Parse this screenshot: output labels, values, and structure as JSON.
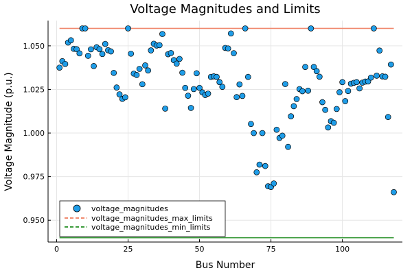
{
  "chart_data": {
    "type": "scatter",
    "title": "Voltage Magnitudes and Limits",
    "xlabel": "Bus Number",
    "ylabel": "Voltage Magnitude (p.u.)",
    "xlim": [
      -3,
      121
    ],
    "ylim": [
      0.9375,
      1.0645
    ],
    "x_ticks": [
      0,
      25,
      50,
      75,
      100
    ],
    "x_tick_labels": [
      "0",
      "25",
      "50",
      "75",
      "100"
    ],
    "y_ticks": [
      0.95,
      0.975,
      1.0,
      1.025,
      1.05
    ],
    "y_tick_labels": [
      "0.950",
      "0.975",
      "1.000",
      "1.025",
      "1.050"
    ],
    "grid": true,
    "legend_position": "bottom-left",
    "series": [
      {
        "name": "voltage_magnitudes",
        "kind": "scatter",
        "color": "#1f9de8",
        "edge_color": "#000000",
        "x": [
          1,
          2,
          3,
          4,
          5,
          6,
          7,
          8,
          9,
          10,
          11,
          12,
          13,
          14,
          15,
          16,
          17,
          18,
          19,
          20,
          21,
          22,
          23,
          24,
          25,
          26,
          27,
          28,
          29,
          30,
          31,
          32,
          33,
          34,
          35,
          36,
          37,
          38,
          39,
          40,
          41,
          42,
          43,
          44,
          45,
          46,
          47,
          48,
          49,
          50,
          51,
          52,
          53,
          54,
          55,
          56,
          57,
          58,
          59,
          60,
          61,
          62,
          63,
          64,
          65,
          66,
          67,
          68,
          69,
          70,
          71,
          72,
          73,
          74,
          75,
          76,
          77,
          78,
          79,
          80,
          81,
          82,
          83,
          84,
          85,
          86,
          87,
          88,
          89,
          90,
          91,
          92,
          93,
          94,
          95,
          96,
          97,
          98,
          99,
          100,
          101,
          102,
          103,
          104,
          105,
          106,
          107,
          108,
          109,
          110,
          111,
          112,
          113,
          114,
          115,
          116,
          117,
          118
        ],
        "y": [
          1.0375,
          1.0412,
          1.0396,
          1.0519,
          1.0532,
          1.0483,
          1.0481,
          1.0457,
          1.06,
          1.06,
          1.0443,
          1.048,
          1.0384,
          1.0492,
          1.0481,
          1.0453,
          1.0511,
          1.0475,
          1.0468,
          1.0345,
          1.0261,
          1.0222,
          1.0196,
          1.0205,
          1.06,
          1.0455,
          1.0341,
          1.0333,
          1.0368,
          1.028,
          1.0388,
          1.0359,
          1.0474,
          1.0512,
          1.0502,
          1.0504,
          1.0568,
          1.014,
          1.0452,
          1.0459,
          1.0418,
          1.0398,
          1.0425,
          1.0346,
          1.0259,
          1.0214,
          1.0144,
          1.0252,
          1.0343,
          1.0259,
          1.0233,
          1.0218,
          1.0226,
          1.0322,
          1.0325,
          1.0322,
          1.0292,
          1.0265,
          1.0488,
          1.0485,
          1.0571,
          1.0458,
          1.0206,
          1.0279,
          1.0213,
          1.06,
          1.0322,
          1.0052,
          1.0,
          0.9775,
          0.9819,
          1.0,
          0.9811,
          0.9695,
          0.9691,
          0.9711,
          1.0019,
          0.9972,
          0.9985,
          1.0281,
          0.9921,
          1.0096,
          1.0154,
          1.0195,
          1.0252,
          1.024,
          1.0379,
          1.0243,
          1.06,
          1.0379,
          1.0355,
          1.0323,
          1.0177,
          1.0133,
          1.0032,
          1.0068,
          1.0059,
          1.0138,
          1.0234,
          1.0292,
          1.0183,
          1.0241,
          1.0283,
          1.0288,
          1.0292,
          1.0256,
          1.0289,
          1.0295,
          1.0296,
          1.0318,
          1.06,
          1.0329,
          1.0473,
          1.0325,
          1.0323,
          1.0092,
          1.0393,
          0.9661
        ]
      },
      {
        "name": "voltage_magnitudes_max_limits",
        "kind": "line",
        "color": "#f0896e",
        "x": [
          1,
          118
        ],
        "y": [
          1.06,
          1.06
        ]
      },
      {
        "name": "voltage_magnitudes_min_limits",
        "kind": "line",
        "color": "#3a9a3a",
        "x": [
          1,
          118
        ],
        "y": [
          0.94,
          0.94
        ]
      }
    ]
  }
}
